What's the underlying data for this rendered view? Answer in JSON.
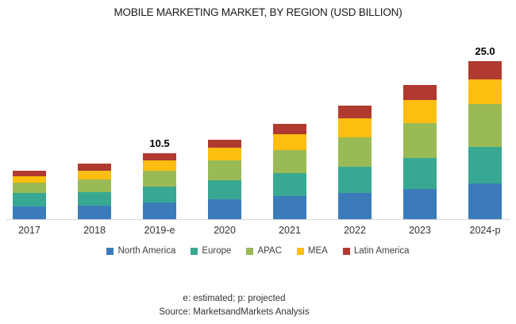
{
  "chart_data": {
    "type": "bar",
    "stacked": true,
    "title": "MOBILE MARKETING MARKET, BY REGION (USD BILLION)",
    "categories": [
      "2017",
      "2018",
      "2019-e",
      "2020",
      "2021",
      "2022",
      "2023",
      "2024-p"
    ],
    "series": [
      {
        "name": "North America",
        "color": "#3b7bba",
        "values": [
          2.0,
          2.1,
          2.6,
          3.1,
          3.7,
          4.2,
          4.8,
          5.7
        ]
      },
      {
        "name": "Europe",
        "color": "#38a893",
        "values": [
          2.1,
          2.2,
          2.5,
          3.1,
          3.6,
          4.1,
          4.9,
          5.7
        ]
      },
      {
        "name": "APAC",
        "color": "#9aba55",
        "values": [
          1.7,
          2.0,
          2.6,
          3.1,
          3.6,
          4.6,
          5.5,
          6.8
        ]
      },
      {
        "name": "MEA",
        "color": "#febe10",
        "values": [
          1.0,
          1.4,
          1.6,
          2.0,
          2.6,
          3.1,
          3.7,
          3.9
        ]
      },
      {
        "name": "Latin America",
        "color": "#b03a30",
        "values": [
          0.9,
          1.1,
          1.2,
          1.3,
          1.6,
          2.0,
          2.3,
          2.9
        ]
      }
    ],
    "totals": [
      7.7,
      8.8,
      10.5,
      12.6,
      15.1,
      18.0,
      21.2,
      25.0
    ],
    "data_labels": [
      "",
      "",
      "10.5",
      "",
      "",
      "",
      "",
      "25.0"
    ],
    "ylabel": "USD Billion",
    "grid": false,
    "legend_position": "bottom"
  },
  "footer": {
    "note": "e: estimated;  p: projected",
    "source": "Source: MarketsandMarkets Analysis"
  }
}
